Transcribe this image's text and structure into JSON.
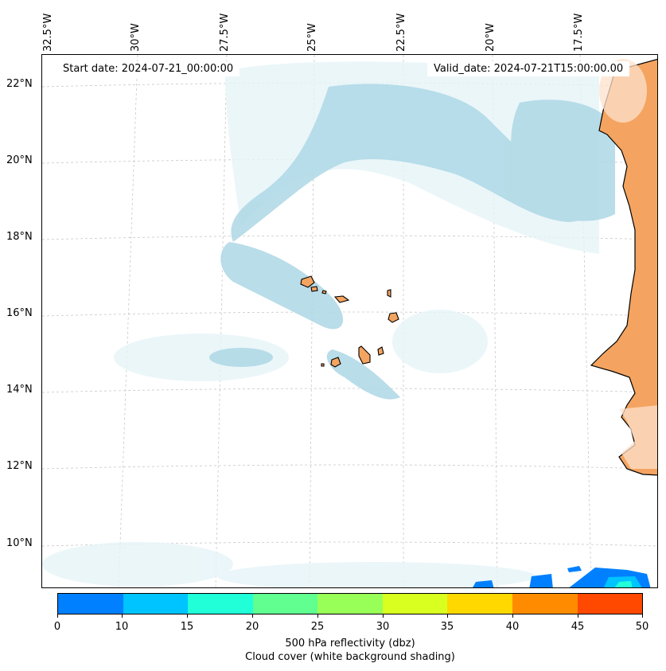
{
  "map": {
    "lon_labels": [
      "32.5°W",
      "30°W",
      "27.5°W",
      "25°W",
      "22.5°W",
      "20°W",
      "17.5°W"
    ],
    "lat_labels": [
      "22°N",
      "20°N",
      "18°N",
      "16°N",
      "14°N",
      "12°N",
      "10°N"
    ],
    "start_date": "Start date: 2024-07-21_00:00:00",
    "valid_date": "Valid_date: 2024-07-21T15:00:00.00",
    "colors": {
      "land": "#f4a460",
      "cloud": "#add8e6",
      "cloud_light": "#e6f4f8",
      "coast": "#000000",
      "grid": "#c8c8c8"
    }
  },
  "colorbar": {
    "ticks": [
      "0",
      "10",
      "15",
      "20",
      "25",
      "30",
      "35",
      "40",
      "45",
      "50"
    ],
    "colors": [
      "#0080ff",
      "#00c4ff",
      "#20ffd8",
      "#60ff90",
      "#98ff58",
      "#d8ff20",
      "#ffd800",
      "#ff8c00",
      "#ff4800"
    ],
    "label_line1": "500 hPa reflectivity (dbz)",
    "label_line2": "Cloud cover (white background shading)"
  }
}
